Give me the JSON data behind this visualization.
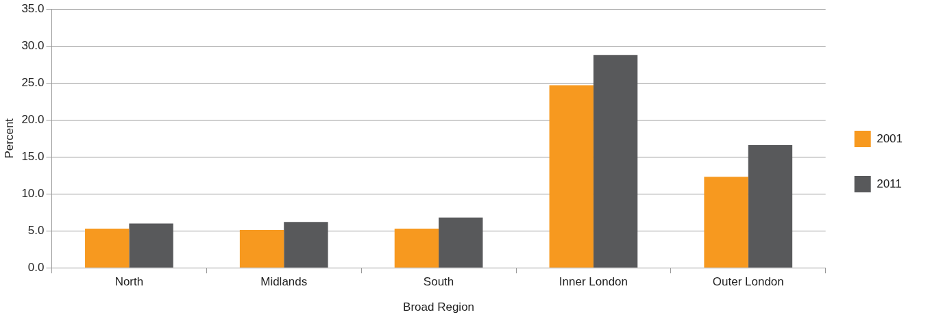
{
  "chart_data": {
    "type": "bar",
    "xlabel": "Broad Region",
    "ylabel": "Percent",
    "categories": [
      "North",
      "Midlands",
      "South",
      "Inner London",
      "Outer London"
    ],
    "series": [
      {
        "name": "2001",
        "color": "#f7991f",
        "values": [
          5.3,
          5.1,
          5.3,
          24.7,
          12.3
        ]
      },
      {
        "name": "2011",
        "color": "#58595b",
        "values": [
          6.0,
          6.2,
          6.8,
          28.8,
          16.6
        ]
      }
    ],
    "ylim": [
      0,
      35
    ],
    "yticks": [
      {
        "value": 0,
        "label": "0.0"
      },
      {
        "value": 5,
        "label": "5.0"
      },
      {
        "value": 10,
        "label": "10.0"
      },
      {
        "value": 15,
        "label": "15.0"
      },
      {
        "value": 20,
        "label": "20.0"
      },
      {
        "value": 25,
        "label": "25.0"
      },
      {
        "value": 30,
        "label": "30.0"
      },
      {
        "value": 35,
        "label": "35.0"
      }
    ],
    "grid": "y",
    "legend": "right"
  }
}
